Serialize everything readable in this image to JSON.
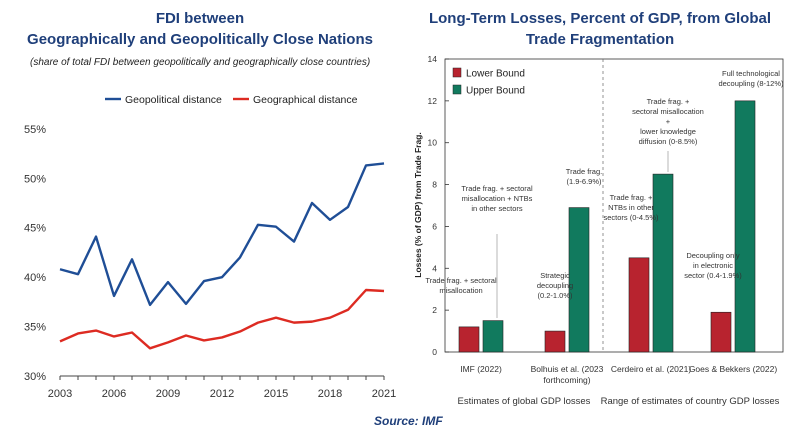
{
  "left_chart_title_line1": "FDI between",
  "left_chart_title_line2": "Geographically and Geopolitically Close Nations",
  "left_chart_subtitle": "(share of total FDI between geopolitically and geographically close countries)",
  "right_chart_title_line1": "Long-Term Losses, Percent of GDP, from Global",
  "right_chart_title_line2": "Trade Fragmentation",
  "source": "Source: IMF",
  "colors": {
    "blue": "#1f4e96",
    "red": "#dd2b22",
    "maroon": "#b8232f",
    "green": "#117a5e"
  },
  "chart_data": [
    {
      "type": "line",
      "title": "FDI between Geographically and Geopolitically Close Nations",
      "subtitle": "(share of total FDI between geopolitically and geographically close countries)",
      "x": [
        2003,
        2004,
        2005,
        2006,
        2007,
        2008,
        2009,
        2010,
        2011,
        2012,
        2013,
        2014,
        2015,
        2016,
        2017,
        2018,
        2019,
        2020,
        2021
      ],
      "series": [
        {
          "name": "Geopolitical distance",
          "color": "#1f4e96",
          "values": [
            40.8,
            40.3,
            44.1,
            38.1,
            41.8,
            37.2,
            39.5,
            37.3,
            39.6,
            40.0,
            42.0,
            45.3,
            45.1,
            43.6,
            47.5,
            45.8,
            47.1,
            51.3,
            51.5
          ]
        },
        {
          "name": "Geographical distance",
          "color": "#dd2b22",
          "values": [
            33.5,
            34.3,
            34.6,
            34.0,
            34.4,
            32.8,
            33.4,
            34.1,
            33.6,
            33.9,
            34.5,
            35.4,
            35.9,
            35.4,
            35.5,
            35.9,
            36.7,
            38.7,
            38.6
          ]
        }
      ],
      "xticks": [
        "2003",
        "2006",
        "2009",
        "2012",
        "2015",
        "2018",
        "2021"
      ],
      "yticks": [
        "30%",
        "35%",
        "40%",
        "45%",
        "50%",
        "55%"
      ],
      "ylim": [
        30,
        56
      ],
      "legend": "top"
    },
    {
      "type": "bar",
      "title": "Long-Term Losses, Percent of GDP, from Global Trade Fragmentation",
      "ylabel": "Losses (% of GDP) from Trade Frag.",
      "ylim": [
        0,
        14
      ],
      "yticks": [
        "0",
        "2",
        "4",
        "6",
        "8",
        "10",
        "12",
        "14"
      ],
      "categories": [
        "IMF (2022)",
        "Bolhuis et al. (2023 forthcoming)",
        "Cerdeiro et al. (2021)",
        "Goes & Bekkers (2022)"
      ],
      "category_lines": [
        [
          "IMF (2022)"
        ],
        [
          "Bolhuis et al. (2023",
          "forthcoming)"
        ],
        [
          "Cerdeiro et al. (2021)"
        ],
        [
          "Goes & Bekkers (2022)"
        ]
      ],
      "series": [
        {
          "name": "Lower Bound",
          "color": "#b8232f",
          "values": [
            1.2,
            1.0,
            4.5,
            1.9
          ]
        },
        {
          "name": "Upper Bound",
          "color": "#117a5e",
          "values": [
            1.5,
            6.9,
            8.5,
            12.0
          ]
        }
      ],
      "group_labels": [
        "Estimates of global GDP losses",
        "Range of estimates of country GDP losses"
      ],
      "annotations": [
        {
          "lines": [
            "Trade frag. + sectoral",
            "misallocation"
          ]
        },
        {
          "lines": [
            "Trade frag. + sectoral",
            "misallocation + NTBs",
            "in other sectors"
          ]
        },
        {
          "lines": [
            "Strategic",
            "decoupling",
            "(0.2-1.0%)"
          ]
        },
        {
          "lines": [
            "Trade frag.",
            "(1.9-6.9%)"
          ]
        },
        {
          "lines": [
            "Trade frag. +",
            "NTBs in other",
            "sectors (0-4.5%)"
          ]
        },
        {
          "lines": [
            "Trade frag. +",
            "sectoral misallocation",
            "+",
            "lower knowledge",
            "diffusion (0-8.5%)"
          ]
        },
        {
          "lines": [
            "Decoupling only",
            "in electronic",
            "sector (0.4-1.9%)"
          ]
        },
        {
          "lines": [
            "Full technological",
            "decoupling (8-12%)"
          ]
        }
      ],
      "legend": "top-left"
    }
  ]
}
